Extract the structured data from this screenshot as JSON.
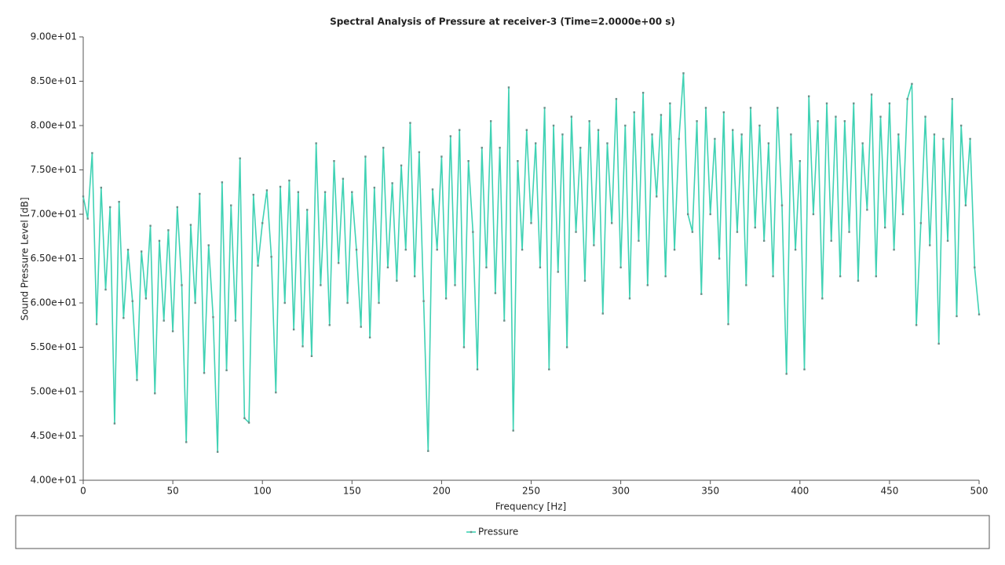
{
  "chart_data": {
    "type": "line",
    "title": "Spectral Analysis of Pressure at receiver-3 (Time=2.0000e+00 s)",
    "x_label": "Frequency [Hz]",
    "y_label": "Sound Pressure Level [dB]",
    "x": [
      0,
      2.5,
      5,
      7.5,
      10,
      12.5,
      15,
      17.5,
      20,
      22.5,
      25,
      27.5,
      30,
      32.5,
      35,
      37.5,
      40,
      42.5,
      45,
      47.5,
      50,
      52.5,
      55,
      57.5,
      60,
      62.5,
      65,
      67.5,
      70,
      72.5,
      75,
      77.5,
      80,
      82.5,
      85,
      87.5,
      90,
      92.5,
      95,
      97.5,
      100,
      102.5,
      105,
      107.5,
      110,
      112.5,
      115,
      117.5,
      120,
      122.5,
      125,
      127.5,
      130,
      132.5,
      135,
      137.5,
      140,
      142.5,
      145,
      147.5,
      150,
      152.5,
      155,
      157.5,
      160,
      162.5,
      165,
      167.5,
      170,
      172.5,
      175,
      177.5,
      180,
      182.5,
      185,
      187.5,
      190,
      192.5,
      195,
      197.5,
      200,
      202.5,
      205,
      207.5,
      210,
      212.5,
      215,
      217.5,
      220,
      222.5,
      225,
      227.5,
      230,
      232.5,
      235,
      237.5,
      240,
      242.5,
      245,
      247.5,
      250,
      252.5,
      255,
      257.5,
      260,
      262.5,
      265,
      267.5,
      270,
      272.5,
      275,
      277.5,
      280,
      282.5,
      285,
      287.5,
      290,
      292.5,
      295,
      297.5,
      300,
      302.5,
      305,
      307.5,
      310,
      312.5,
      315,
      317.5,
      320,
      322.5,
      325,
      327.5,
      330,
      332.5,
      335,
      337.5,
      340,
      342.5,
      345,
      347.5,
      350,
      352.5,
      355,
      357.5,
      360,
      362.5,
      365,
      367.5,
      370,
      372.5,
      375,
      377.5,
      380,
      382.5,
      385,
      387.5,
      390,
      392.5,
      395,
      397.5,
      400,
      402.5,
      405,
      407.5,
      410,
      412.5,
      415,
      417.5,
      420,
      422.5,
      425,
      427.5,
      430,
      432.5,
      435,
      437.5,
      440,
      442.5,
      445,
      447.5,
      450,
      452.5,
      455,
      457.5,
      460,
      462.5,
      465,
      467.5,
      470,
      472.5,
      475,
      477.5,
      480,
      482.5,
      485,
      487.5,
      490,
      492.5,
      495,
      497.5,
      500
    ],
    "series": [
      {
        "name": "Pressure",
        "color": "#40d2b4",
        "values": [
          72.0,
          69.5,
          76.9,
          57.6,
          73.0,
          61.5,
          70.8,
          46.4,
          71.4,
          58.3,
          66.0,
          60.2,
          51.3,
          65.8,
          60.5,
          68.7,
          49.8,
          67.0,
          58.0,
          68.2,
          56.8,
          70.8,
          62.0,
          44.3,
          68.8,
          60.0,
          72.3,
          52.1,
          66.5,
          58.4,
          43.2,
          73.6,
          52.4,
          71.0,
          58.0,
          76.3,
          47.0,
          46.5,
          72.2,
          64.2,
          69.0,
          72.7,
          65.2,
          49.9,
          73.1,
          60.0,
          73.8,
          57.0,
          72.5,
          55.1,
          70.5,
          54.0,
          78.0,
          62.0,
          72.5,
          57.5,
          76.0,
          64.5,
          74.0,
          60.0,
          72.5,
          66.0,
          57.3,
          76.5,
          56.1,
          73.0,
          60.0,
          77.5,
          64.0,
          73.5,
          62.5,
          75.5,
          66.0,
          80.3,
          63.0,
          77.0,
          60.2,
          43.3,
          72.8,
          66.0,
          76.5,
          60.5,
          78.8,
          62.0,
          79.5,
          55.0,
          76.0,
          68.0,
          52.5,
          77.5,
          64.0,
          80.5,
          61.1,
          77.5,
          58.0,
          84.3,
          45.6,
          76.0,
          66.0,
          79.5,
          69.0,
          78.0,
          64.0,
          82.0,
          52.5,
          80.0,
          63.5,
          79.0,
          55.0,
          81.0,
          68.0,
          77.5,
          62.5,
          80.5,
          66.5,
          79.5,
          58.8,
          78.0,
          69.0,
          83.0,
          64.0,
          80.0,
          60.5,
          81.5,
          67.0,
          83.7,
          62.0,
          79.0,
          72.0,
          81.2,
          63.0,
          82.5,
          66.0,
          78.5,
          85.9,
          70.0,
          68.0,
          80.5,
          61.0,
          82.0,
          70.0,
          78.5,
          65.0,
          81.5,
          57.6,
          79.5,
          68.0,
          79.0,
          62.0,
          82.0,
          68.5,
          80.0,
          67.0,
          78.0,
          63.0,
          82.0,
          71.0,
          52.0,
          79.0,
          66.0,
          76.0,
          52.5,
          83.3,
          70.0,
          80.5,
          60.5,
          82.5,
          67.0,
          81.0,
          63.0,
          80.5,
          68.0,
          82.5,
          62.5,
          78.0,
          70.5,
          83.5,
          63.0,
          81.0,
          68.5,
          82.5,
          66.0,
          79.0,
          70.0,
          83.0,
          84.7,
          57.5,
          69.0,
          81.0,
          66.5,
          79.0,
          55.4,
          78.5,
          67.0,
          83.0,
          58.5,
          80.0,
          71.0,
          78.5,
          64.0,
          58.7
        ]
      }
    ],
    "xlim": [
      0,
      500
    ],
    "xticks": [
      0,
      50,
      100,
      150,
      200,
      250,
      300,
      350,
      400,
      450,
      500
    ],
    "ylim": [
      40,
      90
    ],
    "yticks": [
      {
        "value": 40,
        "label": "4.00e+01"
      },
      {
        "value": 45,
        "label": "4.50e+01"
      },
      {
        "value": 50,
        "label": "5.00e+01"
      },
      {
        "value": 55,
        "label": "5.50e+01"
      },
      {
        "value": 60,
        "label": "6.00e+01"
      },
      {
        "value": 65,
        "label": "6.50e+01"
      },
      {
        "value": 70,
        "label": "7.00e+01"
      },
      {
        "value": 75,
        "label": "7.50e+01"
      },
      {
        "value": 80,
        "label": "8.00e+01"
      },
      {
        "value": 85,
        "label": "8.50e+01"
      },
      {
        "value": 90,
        "label": "9.00e+01"
      }
    ],
    "grid": false,
    "legend": "bottom"
  }
}
